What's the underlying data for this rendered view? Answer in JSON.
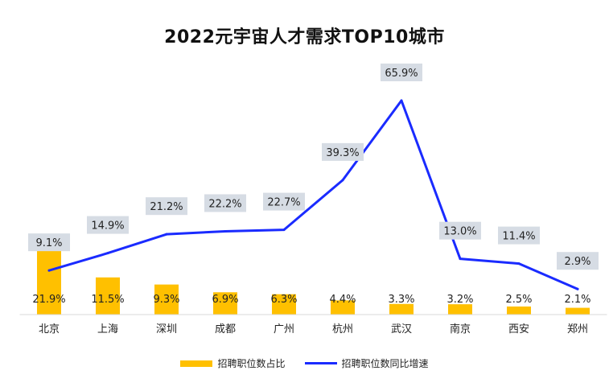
{
  "chart_data": {
    "type": "bar",
    "title": "2022元宇宙人才需求TOP10城市",
    "categories": [
      "北京",
      "上海",
      "深圳",
      "成都",
      "广州",
      "杭州",
      "武汉",
      "南京",
      "西安",
      "郑州"
    ],
    "series": [
      {
        "name": "招聘职位数占比",
        "kind": "bar",
        "unit": "%",
        "values": [
          21.9,
          11.5,
          9.3,
          6.9,
          6.3,
          4.4,
          3.3,
          3.2,
          2.5,
          2.1
        ],
        "labels": [
          "21.9%",
          "11.5%",
          "9.3%",
          "6.9%",
          "6.3%",
          "4.4%",
          "3.3%",
          "3.2%",
          "2.5%",
          "2.1%"
        ],
        "color": "#FFC000"
      },
      {
        "name": "招聘职位数同比增速",
        "kind": "line",
        "unit": "%",
        "values": [
          9.1,
          14.9,
          21.2,
          22.2,
          22.7,
          39.3,
          65.9,
          13.0,
          11.4,
          2.9
        ],
        "labels": [
          "9.1%",
          "14.9%",
          "21.2%",
          "22.2%",
          "22.7%",
          "39.3%",
          "65.9%",
          "13.0%",
          "11.4%",
          "2.9%"
        ],
        "color": "#1A2BFF"
      }
    ],
    "bar_axis_range": [
      0,
      21.9
    ],
    "line_axis_range": [
      0,
      65.9
    ],
    "grid": false,
    "legend_position": "bottom",
    "label_box_color": "#D6DCE4"
  }
}
